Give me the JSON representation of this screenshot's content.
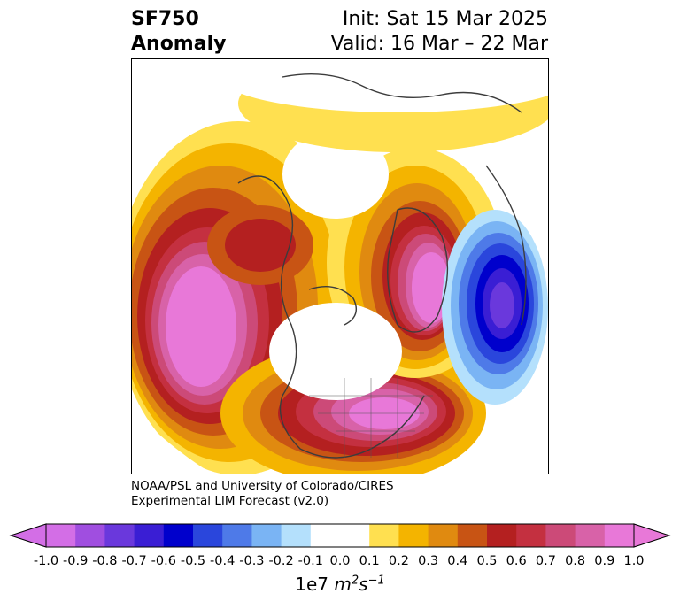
{
  "title": {
    "left_line1": "SF750",
    "left_line2": "Anomaly",
    "right_line1": "Init: Sat 15 Mar 2025",
    "right_line2": "Valid: 16 Mar – 22 Mar"
  },
  "credit": {
    "line1": "NOAA/PSL and University of Colorado/CIRES",
    "line2": "Experimental LIM Forecast (v2.0)"
  },
  "colorbar": {
    "ticks": [
      "-1.0",
      "-0.9",
      "-0.8",
      "-0.7",
      "-0.6",
      "-0.5",
      "-0.4",
      "-0.3",
      "-0.2",
      "-0.1",
      "0.0",
      "0.1",
      "0.2",
      "0.3",
      "0.4",
      "0.5",
      "0.6",
      "0.7",
      "0.8",
      "0.9",
      "1.0"
    ],
    "colors": [
      "#d36ee6",
      "#a04ee0",
      "#6a38dc",
      "#3a1ed4",
      "#0000cc",
      "#2a46dc",
      "#4e7ae8",
      "#7ab4f4",
      "#b4e0fc",
      "#ffffff",
      "#ffffff",
      "#ffe050",
      "#f4b400",
      "#e08a10",
      "#c85414",
      "#b42020",
      "#c43040",
      "#cc4a78",
      "#d862a8",
      "#e878d8"
    ],
    "underflow_color": "#d36ee6",
    "overflow_color": "#e878d8",
    "units_prefix": "1e7",
    "units_m": "m",
    "units_m_exp": "2",
    "units_s": "s",
    "units_s_exp": "−1"
  }
}
